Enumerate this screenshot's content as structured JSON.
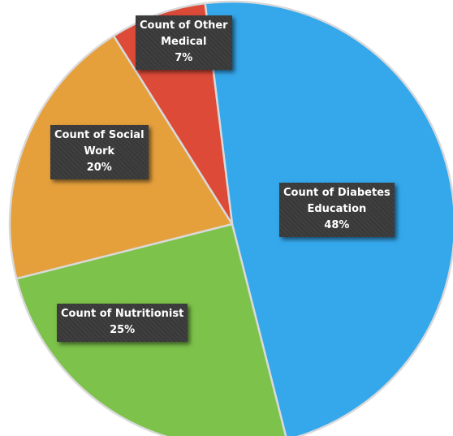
{
  "chart_data": {
    "type": "pie",
    "title": "",
    "legend": "none",
    "start_angle_deg": -7,
    "direction": "clockwise",
    "slices": [
      {
        "category": "Count of Diabetes Education",
        "value": 48,
        "label_lines": [
          "Count of Diabetes",
          "Education"
        ],
        "percent_label": "48%",
        "color": "#35a8ec"
      },
      {
        "category": "Count of Nutritionist",
        "value": 25,
        "label_lines": [
          "Count of Nutritionist"
        ],
        "percent_label": "25%",
        "color": "#7dc24b"
      },
      {
        "category": "Count of Social Work",
        "value": 20,
        "label_lines": [
          "Count of Social",
          "Work"
        ],
        "percent_label": "20%",
        "color": "#e5a03c"
      },
      {
        "category": "Count of Other Medical",
        "value": 7,
        "label_lines": [
          "Count of Other",
          "Medical"
        ],
        "percent_label": "7%",
        "color": "#dd4a38"
      }
    ]
  }
}
